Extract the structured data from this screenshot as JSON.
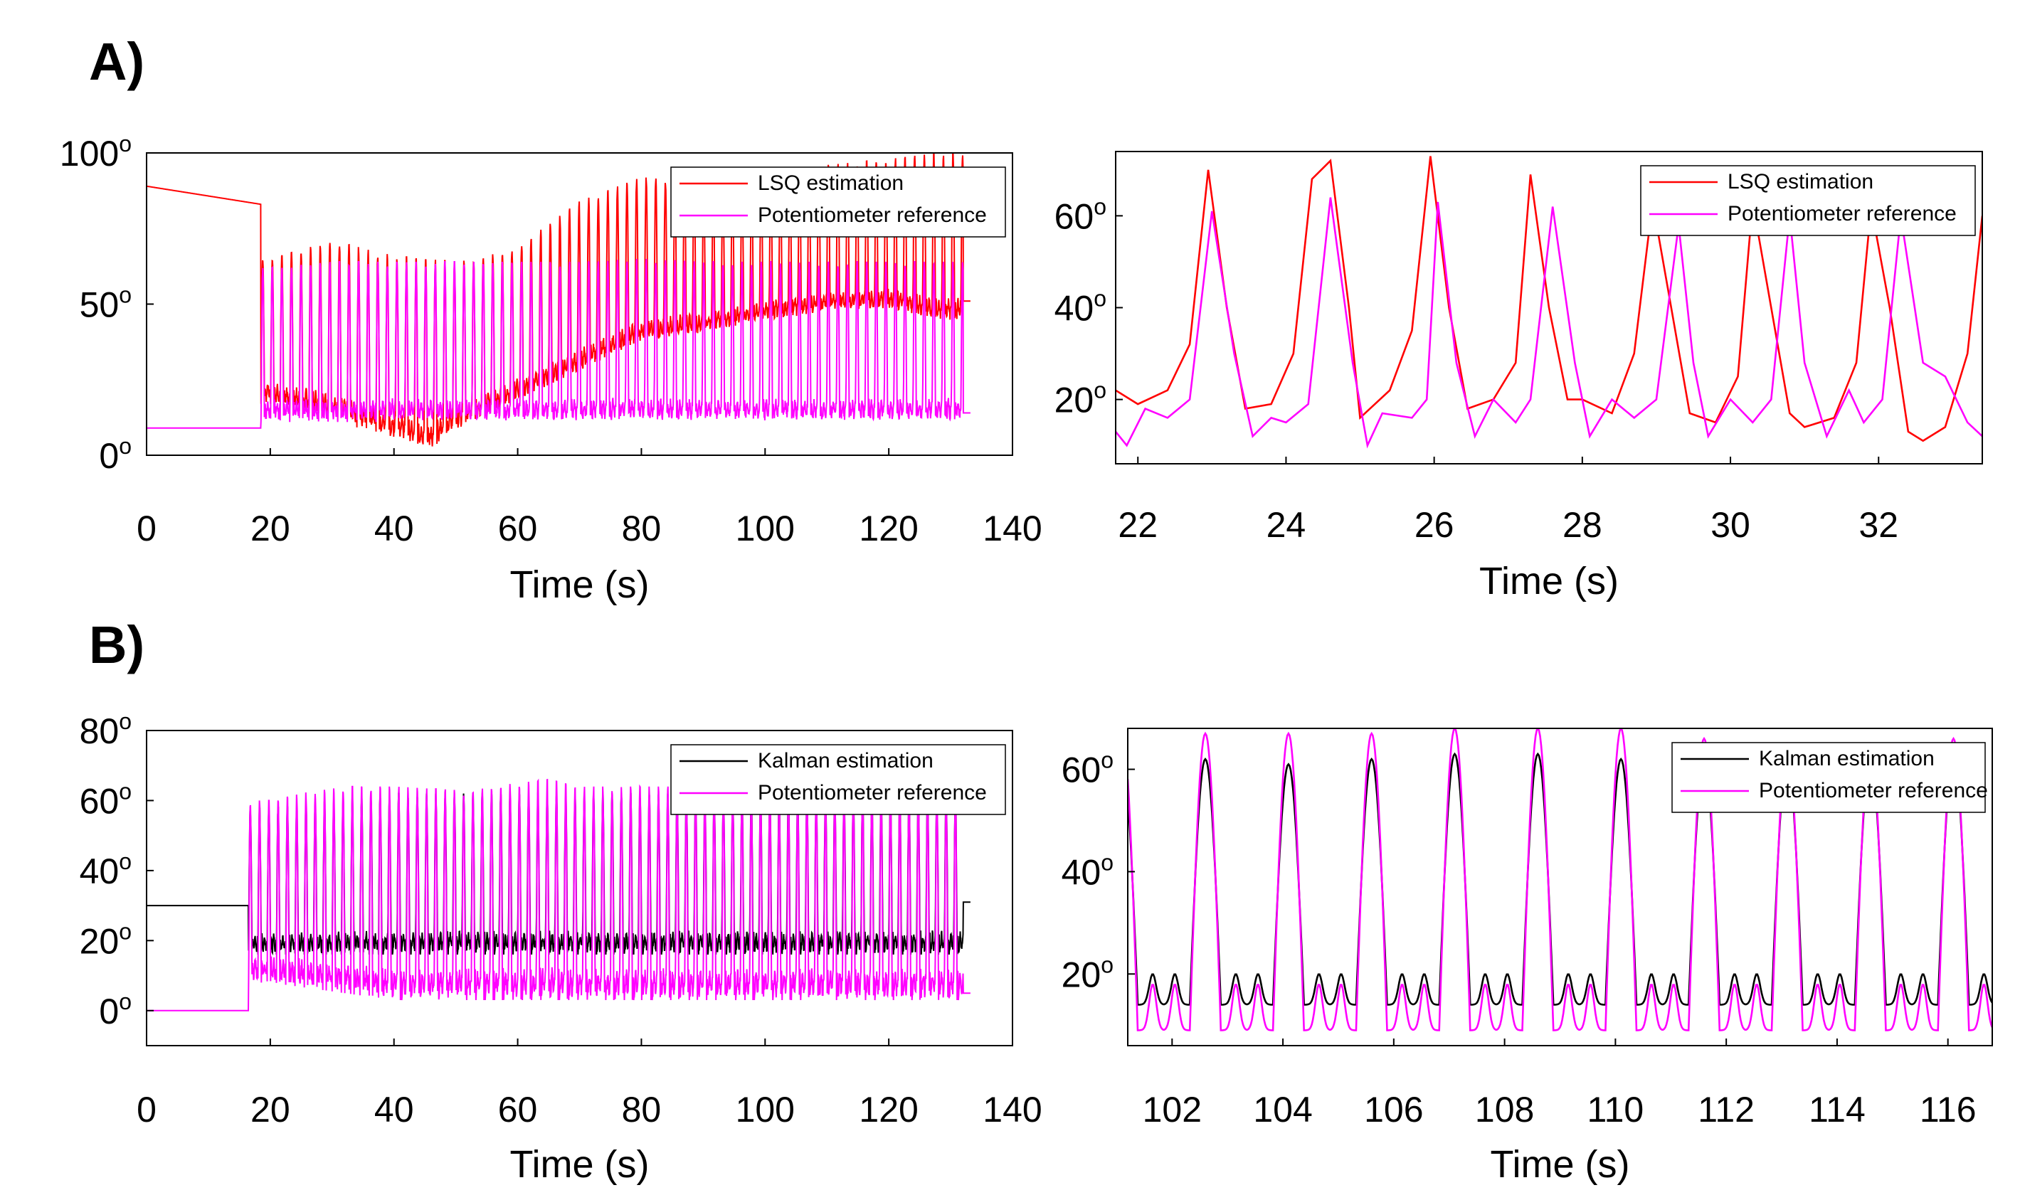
{
  "panels": [
    {
      "label": "A)"
    },
    {
      "label": "B)"
    }
  ],
  "chart_data": [
    {
      "type": "line",
      "panel": "A)",
      "xlabel": "Time (s)",
      "ylabel": "",
      "xlim": [
        0,
        140
      ],
      "ylim": [
        0,
        100
      ],
      "xticks": [
        "0",
        "20",
        "40",
        "60",
        "80",
        "100",
        "120",
        "140"
      ],
      "yticks": [
        "0",
        "50",
        "100"
      ],
      "ytick_suffix": "o",
      "legend": "top-right",
      "series": [
        {
          "name": "LSQ estimation",
          "color": "#ff0000",
          "description_data": {
            "start": 89,
            "slope_end": 83,
            "onset_time": 18.5,
            "end_time": 132,
            "final": 51,
            "peaks": [
              [
                20,
                65
              ],
              [
                30,
                71
              ],
              [
                40,
                66
              ],
              [
                50,
                64
              ],
              [
                60,
                69
              ],
              [
                70,
                84
              ],
              [
                80,
                92
              ],
              [
                90,
                90
              ],
              [
                100,
                91
              ],
              [
                110,
                96
              ],
              [
                120,
                98
              ],
              [
                128,
                100
              ]
            ],
            "troughs": [
              [
                20,
                17
              ],
              [
                30,
                12
              ],
              [
                40,
                5
              ],
              [
                46,
                1
              ],
              [
                50,
                8
              ],
              [
                60,
                18
              ],
              [
                70,
                27
              ],
              [
                80,
                37
              ],
              [
                90,
                40
              ],
              [
                100,
                44
              ],
              [
                110,
                47
              ],
              [
                120,
                48
              ],
              [
                128,
                44
              ]
            ]
          }
        },
        {
          "name": "Potentiometer reference",
          "color": "#ff00ff",
          "description_data": {
            "start": 9,
            "onset_time": 18.5,
            "end_time": 132,
            "final": 14,
            "peaks": [
              [
                20,
                62
              ],
              [
                30,
                64
              ],
              [
                40,
                64
              ],
              [
                50,
                64
              ],
              [
                60,
                64
              ],
              [
                70,
                64
              ],
              [
                80,
                65
              ],
              [
                90,
                64
              ],
              [
                100,
                64
              ],
              [
                110,
                64
              ],
              [
                120,
                64
              ],
              [
                128,
                64
              ]
            ],
            "troughs": [
              [
                20,
                11
              ],
              [
                40,
                11
              ],
              [
                60,
                11
              ],
              [
                80,
                11
              ],
              [
                100,
                11
              ],
              [
                120,
                11
              ]
            ]
          }
        }
      ]
    },
    {
      "type": "line",
      "panel": "A) zoom",
      "xlabel": "Time (s)",
      "ylabel": "",
      "xlim": [
        21.7,
        33.4
      ],
      "ylim": [
        6,
        74
      ],
      "xticks": [
        "22",
        "24",
        "26",
        "28",
        "30",
        "32"
      ],
      "yticks": [
        "20",
        "40",
        "60"
      ],
      "ytick_suffix": "o",
      "legend": "top-right",
      "series": [
        {
          "name": "LSQ estimation",
          "color": "#ff0000",
          "x": [
            21.7,
            22.0,
            22.4,
            22.7,
            22.95,
            23.2,
            23.45,
            23.8,
            24.1,
            24.35,
            24.6,
            24.85,
            25.0,
            25.4,
            25.7,
            25.95,
            26.2,
            26.45,
            26.8,
            27.1,
            27.3,
            27.55,
            27.8,
            28.0,
            28.4,
            28.7,
            28.95,
            29.2,
            29.45,
            29.8,
            30.1,
            30.3,
            30.55,
            30.8,
            31.0,
            31.4,
            31.7,
            31.9,
            32.15,
            32.4,
            32.6,
            32.9,
            33.2,
            33.4
          ],
          "y": [
            22,
            19,
            22,
            32,
            70,
            40,
            18,
            19,
            30,
            68,
            72,
            40,
            16,
            22,
            35,
            73,
            40,
            18,
            20,
            28,
            69,
            40,
            20,
            20,
            17,
            30,
            63,
            40,
            17,
            15,
            25,
            63,
            40,
            17,
            14,
            16,
            28,
            62,
            40,
            13,
            11,
            14,
            30,
            60
          ]
        },
        {
          "name": "Potentiometer reference",
          "color": "#ff00ff",
          "x": [
            21.7,
            21.85,
            22.1,
            22.4,
            22.7,
            23.0,
            23.3,
            23.55,
            23.8,
            24.0,
            24.3,
            24.6,
            24.9,
            25.1,
            25.3,
            25.7,
            25.9,
            26.05,
            26.3,
            26.55,
            26.8,
            27.1,
            27.3,
            27.6,
            27.9,
            28.1,
            28.4,
            28.7,
            29.0,
            29.3,
            29.5,
            29.7,
            30.0,
            30.3,
            30.55,
            30.8,
            31.0,
            31.3,
            31.6,
            31.8,
            32.05,
            32.3,
            32.6,
            32.9,
            33.2,
            33.4
          ],
          "y": [
            13,
            10,
            18,
            16,
            20,
            61,
            30,
            12,
            16,
            15,
            19,
            64,
            28,
            10,
            17,
            16,
            20,
            63,
            28,
            12,
            20,
            15,
            20,
            62,
            28,
            12,
            20,
            16,
            20,
            58,
            28,
            12,
            20,
            15,
            20,
            60,
            28,
            12,
            22,
            15,
            20,
            60,
            28,
            25,
            15,
            12
          ]
        }
      ]
    },
    {
      "type": "line",
      "panel": "B)",
      "xlabel": "Time (s)",
      "ylabel": "",
      "xlim": [
        0,
        140
      ],
      "ylim": [
        -10,
        80
      ],
      "xticks": [
        "0",
        "20",
        "40",
        "60",
        "80",
        "100",
        "120",
        "140"
      ],
      "yticks": [
        "0",
        "20",
        "40",
        "60",
        "80"
      ],
      "ytick_suffix": "o",
      "legend": "top-right",
      "series": [
        {
          "name": "Kalman estimation",
          "color": "#000000",
          "description_data": {
            "start": 30,
            "onset_time": 16.5,
            "end_time": 132,
            "final": 31,
            "peaks": [
              [
                20,
                58
              ],
              [
                40,
                62
              ],
              [
                60,
                62
              ],
              [
                80,
                62
              ],
              [
                100,
                62
              ],
              [
                120,
                62
              ]
            ],
            "troughs": [
              [
                20,
                16
              ],
              [
                40,
                16
              ],
              [
                60,
                16
              ],
              [
                80,
                16
              ],
              [
                100,
                16
              ],
              [
                120,
                16
              ]
            ]
          }
        },
        {
          "name": "Potentiometer reference",
          "color": "#ff00ff",
          "description_data": {
            "start": 0,
            "onset_time": 16.5,
            "end_time": 132,
            "final": 5,
            "peaks": [
              [
                20,
                60
              ],
              [
                30,
                64
              ],
              [
                40,
                64
              ],
              [
                50,
                63
              ],
              [
                60,
                65
              ],
              [
                65,
                66
              ],
              [
                70,
                64
              ],
              [
                80,
                64
              ],
              [
                90,
                64
              ],
              [
                100,
                63
              ],
              [
                110,
                64
              ],
              [
                120,
                64
              ]
            ],
            "troughs": [
              [
                20,
                8
              ],
              [
                40,
                3
              ],
              [
                60,
                3
              ],
              [
                80,
                3
              ],
              [
                100,
                3
              ],
              [
                120,
                3
              ]
            ]
          }
        }
      ]
    },
    {
      "type": "line",
      "panel": "B) zoom",
      "xlabel": "Time (s)",
      "ylabel": "",
      "xlim": [
        101.2,
        116.8
      ],
      "ylim": [
        6,
        68
      ],
      "xticks": [
        "102",
        "104",
        "106",
        "108",
        "110",
        "112",
        "114",
        "116"
      ],
      "yticks": [
        "20",
        "40",
        "60"
      ],
      "ytick_suffix": "o",
      "legend": "top-right",
      "series": [
        {
          "name": "Kalman estimation",
          "color": "#000000",
          "period_s": 1.5,
          "first_peak_x": 102.6,
          "peak_values": [
            62,
            61,
            62,
            63,
            63,
            62,
            62,
            62,
            62,
            63
          ],
          "trough_value": 14,
          "bump_value": 20
        },
        {
          "name": "Potentiometer reference",
          "color": "#ff00ff",
          "period_s": 1.5,
          "first_peak_x": 102.6,
          "peak_values": [
            67,
            67,
            67,
            68,
            68,
            68,
            66,
            65,
            65,
            66
          ],
          "trough_value": 9,
          "bump_value": 18
        }
      ]
    }
  ]
}
